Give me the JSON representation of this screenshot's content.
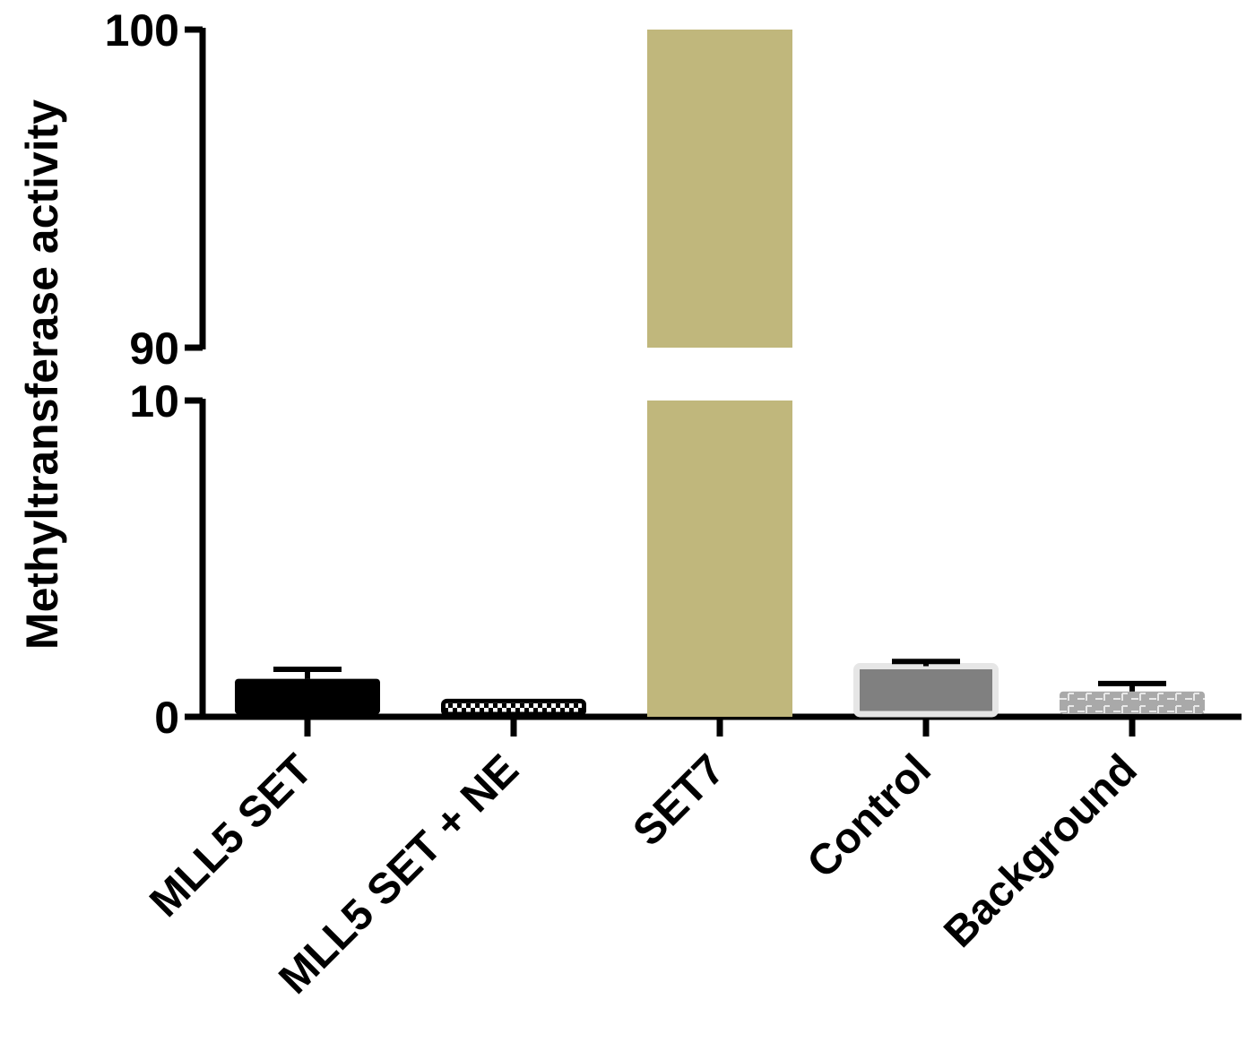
{
  "chart_data": {
    "type": "bar",
    "title": "",
    "xlabel": "",
    "ylabel": "Methyltransferase activity",
    "axis_break": {
      "lower_range": [
        0,
        10
      ],
      "upper_range": [
        90,
        100
      ]
    },
    "y_ticks": [
      0,
      10,
      90,
      100
    ],
    "categories": [
      "MLL5 SET",
      "MLL5 SET + NE",
      "SET7",
      "Control",
      "Background"
    ],
    "values": [
      1.2,
      0.5,
      100,
      1.6,
      0.8
    ],
    "errors": [
      0.3,
      0.0,
      0.0,
      0.15,
      0.25
    ],
    "colors": [
      "#000000",
      "#000000",
      "#C0B77C",
      "#808080",
      "#A9A9A9"
    ],
    "patterns": [
      "solid",
      "checker",
      "solid",
      "solid-with-outline",
      "dashed-grid"
    ],
    "grid": false,
    "legend": "none"
  }
}
